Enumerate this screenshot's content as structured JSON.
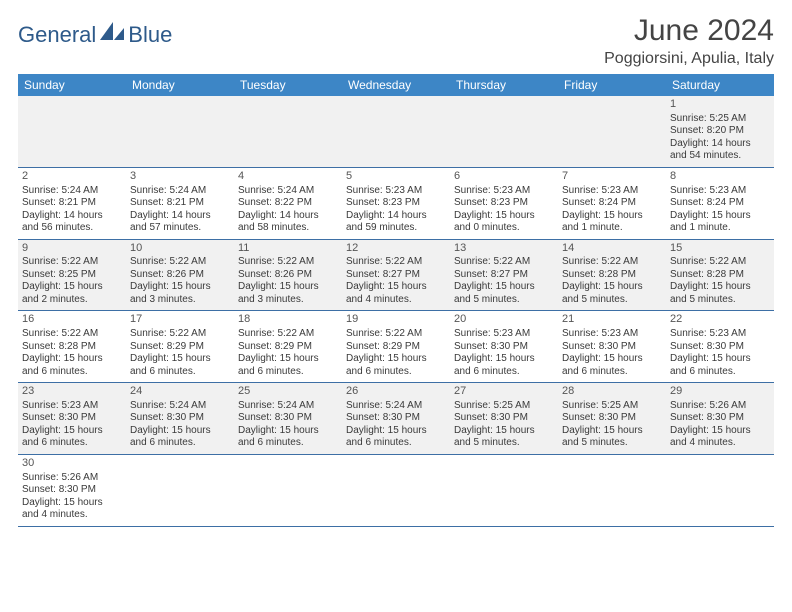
{
  "logo": {
    "text1": "General",
    "text2": "Blue",
    "color": "#2e5a8a"
  },
  "title": "June 2024",
  "location": "Poggiorsini, Apulia, Italy",
  "colors": {
    "header_bg": "#3d86c6",
    "header_fg": "#ffffff",
    "row_odd": "#f1f1f1",
    "row_even": "#ffffff",
    "border": "#3d6fa5",
    "text": "#3a3a3a"
  },
  "weekdays": [
    "Sunday",
    "Monday",
    "Tuesday",
    "Wednesday",
    "Thursday",
    "Friday",
    "Saturday"
  ],
  "grid": {
    "first_weekday_index": 6,
    "days_in_month": 30
  },
  "days": {
    "1": {
      "sunrise": "5:25 AM",
      "sunset": "8:20 PM",
      "daylight": "14 hours and 54 minutes."
    },
    "2": {
      "sunrise": "5:24 AM",
      "sunset": "8:21 PM",
      "daylight": "14 hours and 56 minutes."
    },
    "3": {
      "sunrise": "5:24 AM",
      "sunset": "8:21 PM",
      "daylight": "14 hours and 57 minutes."
    },
    "4": {
      "sunrise": "5:24 AM",
      "sunset": "8:22 PM",
      "daylight": "14 hours and 58 minutes."
    },
    "5": {
      "sunrise": "5:23 AM",
      "sunset": "8:23 PM",
      "daylight": "14 hours and 59 minutes."
    },
    "6": {
      "sunrise": "5:23 AM",
      "sunset": "8:23 PM",
      "daylight": "15 hours and 0 minutes."
    },
    "7": {
      "sunrise": "5:23 AM",
      "sunset": "8:24 PM",
      "daylight": "15 hours and 1 minute."
    },
    "8": {
      "sunrise": "5:23 AM",
      "sunset": "8:24 PM",
      "daylight": "15 hours and 1 minute."
    },
    "9": {
      "sunrise": "5:22 AM",
      "sunset": "8:25 PM",
      "daylight": "15 hours and 2 minutes."
    },
    "10": {
      "sunrise": "5:22 AM",
      "sunset": "8:26 PM",
      "daylight": "15 hours and 3 minutes."
    },
    "11": {
      "sunrise": "5:22 AM",
      "sunset": "8:26 PM",
      "daylight": "15 hours and 3 minutes."
    },
    "12": {
      "sunrise": "5:22 AM",
      "sunset": "8:27 PM",
      "daylight": "15 hours and 4 minutes."
    },
    "13": {
      "sunrise": "5:22 AM",
      "sunset": "8:27 PM",
      "daylight": "15 hours and 5 minutes."
    },
    "14": {
      "sunrise": "5:22 AM",
      "sunset": "8:28 PM",
      "daylight": "15 hours and 5 minutes."
    },
    "15": {
      "sunrise": "5:22 AM",
      "sunset": "8:28 PM",
      "daylight": "15 hours and 5 minutes."
    },
    "16": {
      "sunrise": "5:22 AM",
      "sunset": "8:28 PM",
      "daylight": "15 hours and 6 minutes."
    },
    "17": {
      "sunrise": "5:22 AM",
      "sunset": "8:29 PM",
      "daylight": "15 hours and 6 minutes."
    },
    "18": {
      "sunrise": "5:22 AM",
      "sunset": "8:29 PM",
      "daylight": "15 hours and 6 minutes."
    },
    "19": {
      "sunrise": "5:22 AM",
      "sunset": "8:29 PM",
      "daylight": "15 hours and 6 minutes."
    },
    "20": {
      "sunrise": "5:23 AM",
      "sunset": "8:30 PM",
      "daylight": "15 hours and 6 minutes."
    },
    "21": {
      "sunrise": "5:23 AM",
      "sunset": "8:30 PM",
      "daylight": "15 hours and 6 minutes."
    },
    "22": {
      "sunrise": "5:23 AM",
      "sunset": "8:30 PM",
      "daylight": "15 hours and 6 minutes."
    },
    "23": {
      "sunrise": "5:23 AM",
      "sunset": "8:30 PM",
      "daylight": "15 hours and 6 minutes."
    },
    "24": {
      "sunrise": "5:24 AM",
      "sunset": "8:30 PM",
      "daylight": "15 hours and 6 minutes."
    },
    "25": {
      "sunrise": "5:24 AM",
      "sunset": "8:30 PM",
      "daylight": "15 hours and 6 minutes."
    },
    "26": {
      "sunrise": "5:24 AM",
      "sunset": "8:30 PM",
      "daylight": "15 hours and 6 minutes."
    },
    "27": {
      "sunrise": "5:25 AM",
      "sunset": "8:30 PM",
      "daylight": "15 hours and 5 minutes."
    },
    "28": {
      "sunrise": "5:25 AM",
      "sunset": "8:30 PM",
      "daylight": "15 hours and 5 minutes."
    },
    "29": {
      "sunrise": "5:26 AM",
      "sunset": "8:30 PM",
      "daylight": "15 hours and 4 minutes."
    },
    "30": {
      "sunrise": "5:26 AM",
      "sunset": "8:30 PM",
      "daylight": "15 hours and 4 minutes."
    }
  },
  "labels": {
    "sunrise": "Sunrise:",
    "sunset": "Sunset:",
    "daylight": "Daylight:"
  }
}
